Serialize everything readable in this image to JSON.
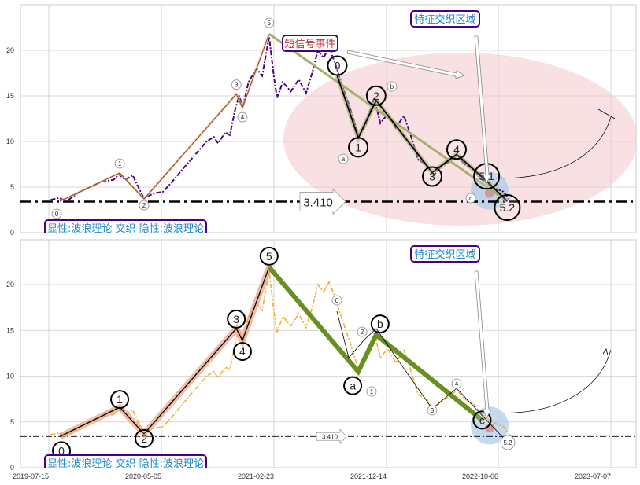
{
  "chart_data": [
    {
      "type": "line",
      "panel": "top",
      "title": "",
      "xlabel": "",
      "ylabel": "",
      "ylim": [
        0,
        25
      ],
      "yticks": [
        "0",
        "5",
        "10",
        "15",
        "20"
      ],
      "grid": true,
      "series_color": "#4b0082",
      "reference_line": {
        "value": 3.41,
        "label": "3.410"
      },
      "waves_up": [
        {
          "label": "0",
          "x": "2019-08-13",
          "y": 3.45
        },
        {
          "label": "1",
          "x": "2020-01-17",
          "y": 6.55
        },
        {
          "label": "2",
          "x": "2020-03-21",
          "y": 3.7
        },
        {
          "label": "3",
          "x": "2020-11-18",
          "y": 15.2
        },
        {
          "label": "4",
          "x": "2020-12-04",
          "y": 13.7
        },
        {
          "label": "5",
          "x": "2021-02-12",
          "y": 21.8
        }
      ],
      "waves_down": [
        {
          "label": "0",
          "x": "2021-08-10",
          "y": 17.2
        },
        {
          "label": "1",
          "x": "2021-10-04",
          "y": 10.4
        },
        {
          "label": "2",
          "x": "2021-11-20",
          "y": 14.5
        },
        {
          "label": "3",
          "x": "2022-04-16",
          "y": 6.6
        },
        {
          "label": "4",
          "x": "2022-06-19",
          "y": 8.6
        },
        {
          "label": "5.1",
          "x": "2022-09-10",
          "y": 5.5
        },
        {
          "label": "5.2",
          "x": "2022-10-30",
          "y": 3.45
        }
      ],
      "sub_labels": [
        "a",
        "b",
        "c"
      ],
      "annotations": {
        "short_signal": "短信号事件",
        "feature_zone": "特征交织区域",
        "legend_box": "显性:波浪理论 交织 隐性:波浪理论"
      },
      "colors": {
        "ellipse": "#f2c6cc",
        "zone": "#a9cbe8",
        "up_line": "#8b4513",
        "down_green": "#a6b06a"
      }
    },
    {
      "type": "line",
      "panel": "bottom",
      "ylim": [
        0,
        25
      ],
      "yticks": [
        "0",
        "5",
        "10",
        "15",
        "20"
      ],
      "xticks": [
        "2019-07-15",
        "2020-05-05",
        "2021-02-23",
        "2021-12-14",
        "2022-10-06",
        "2023-07-07"
      ],
      "grid": true,
      "series_color": "#f0b030",
      "reference_line": {
        "value": 3.41,
        "label": "3.410"
      },
      "waves_up": [
        {
          "label": "0",
          "x": "2019-08-13",
          "y": 3.4
        },
        {
          "label": "1",
          "x": "2020-01-17",
          "y": 6.6
        },
        {
          "label": "2",
          "x": "2020-03-21",
          "y": 3.7
        },
        {
          "label": "3",
          "x": "2020-11-18",
          "y": 15.2
        },
        {
          "label": "4",
          "x": "2020-12-04",
          "y": 13.9
        },
        {
          "label": "5",
          "x": "2021-02-12",
          "y": 21.9
        }
      ],
      "waves_abc": [
        {
          "label": "a",
          "x": "2021-10-04",
          "y": 10.5
        },
        {
          "label": "b",
          "x": "2021-11-20",
          "y": 14.5
        },
        {
          "label": "c",
          "x": "2022-08-25",
          "y": 5.2
        }
      ],
      "small_labels": [
        "0",
        "1",
        "2",
        "3",
        "4",
        "5.2"
      ],
      "annotations": {
        "feature_zone": "特征交织区域",
        "legend_box": "显性:波浪理论 交织 隐性:波浪理论"
      },
      "colors": {
        "up_highlight": "#e8a080",
        "abc_line": "#6b8e23",
        "zone": "#a9cbe8"
      }
    }
  ],
  "price_series": {
    "x": [
      "2019-07-20",
      "2019-08-10",
      "2019-09-01",
      "2019-10-01",
      "2019-11-01",
      "2019-12-01",
      "2020-01-01",
      "2020-01-15",
      "2020-02-01",
      "2020-02-20",
      "2020-03-20",
      "2020-04-15",
      "2020-05-10",
      "2020-06-01",
      "2020-07-01",
      "2020-08-01",
      "2020-09-01",
      "2020-09-20",
      "2020-10-01",
      "2020-10-20",
      "2020-11-01",
      "2020-11-15",
      "2020-11-25",
      "2020-12-05",
      "2020-12-20",
      "2021-01-10",
      "2021-01-25",
      "2021-02-12",
      "2021-02-25",
      "2021-03-05",
      "2021-03-20",
      "2021-04-10",
      "2021-05-01",
      "2021-05-20",
      "2021-06-05",
      "2021-06-20",
      "2021-07-05",
      "2021-07-20",
      "2021-08-05",
      "2021-08-20",
      "2021-09-10",
      "2021-09-25",
      "2021-10-05",
      "2021-10-25",
      "2021-11-15",
      "2021-12-01",
      "2021-12-20",
      "2022-01-10",
      "2022-02-01",
      "2022-02-20",
      "2022-03-10",
      "2022-04-01",
      "2022-04-20",
      "2022-05-10",
      "2022-06-01",
      "2022-06-20",
      "2022-07-10",
      "2022-08-01",
      "2022-08-20",
      "2022-09-10",
      "2022-10-01",
      "2022-10-20",
      "2022-11-05"
    ],
    "y": [
      3.6,
      3.8,
      3.5,
      4.4,
      5.0,
      5.6,
      5.8,
      6.4,
      5.8,
      6.3,
      3.8,
      4.3,
      4.5,
      5.5,
      7.0,
      8.5,
      10.0,
      10.5,
      9.8,
      11.0,
      10.7,
      13.5,
      15.0,
      13.8,
      16.5,
      18.0,
      17.2,
      21.5,
      17.0,
      14.8,
      16.5,
      15.5,
      16.8,
      15.3,
      17.5,
      20.0,
      19.2,
      20.3,
      18.5,
      16.5,
      14.0,
      12.0,
      10.5,
      12.0,
      14.8,
      12.0,
      13.0,
      11.5,
      12.8,
      10.5,
      8.0,
      7.5,
      6.3,
      7.3,
      7.8,
      8.5,
      7.5,
      7.0,
      6.0,
      5.3,
      4.8,
      4.5,
      3.6
    ]
  }
}
